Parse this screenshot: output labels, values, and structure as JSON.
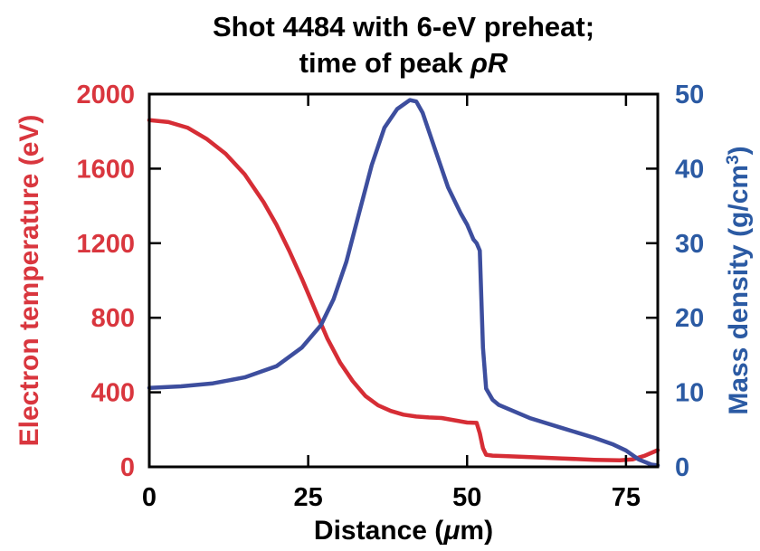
{
  "chart_data": {
    "type": "line",
    "title_line1": "Shot 4484 with 6-eV preheat;",
    "title_line2_prefix": "time of peak ",
    "title_line2_symbol": "ρR",
    "xlabel_prefix": "Distance (",
    "xlabel_unit_symbol": "μ",
    "xlabel_suffix": "m)",
    "ylabel_left": "Electron temperature (eV)",
    "ylabel_right_prefix": "Mass density (g/cm",
    "ylabel_right_sup": "3",
    "ylabel_right_suffix": ")",
    "xlim": [
      0,
      80
    ],
    "ylim_left": [
      0,
      2000
    ],
    "ylim_right": [
      0,
      50
    ],
    "xticks": [
      0,
      25,
      50,
      75
    ],
    "yticks_left": [
      0,
      400,
      800,
      1200,
      1600,
      2000
    ],
    "yticks_right": [
      0,
      10,
      20,
      30,
      40,
      50
    ],
    "colors": {
      "left": "#d62d35",
      "right": "#3d4e9e",
      "text_left": "#d9363e",
      "text_right": "#2b5aa3"
    },
    "series": [
      {
        "name": "Electron temperature (eV)",
        "axis": "left",
        "color": "#d62d35",
        "x": [
          0,
          3,
          6,
          9,
          12,
          15,
          18,
          20,
          22,
          24,
          26,
          28,
          30,
          32,
          34,
          36,
          38,
          40,
          42,
          44,
          46,
          48,
          50,
          51.5,
          52,
          52.5,
          53,
          54,
          56,
          60,
          65,
          70,
          74,
          76,
          78,
          80
        ],
        "y": [
          1860,
          1850,
          1820,
          1760,
          1680,
          1570,
          1420,
          1300,
          1160,
          1010,
          850,
          690,
          560,
          460,
          380,
          330,
          300,
          280,
          270,
          265,
          262,
          250,
          238,
          236,
          180,
          100,
          65,
          60,
          58,
          52,
          45,
          38,
          35,
          40,
          60,
          90
        ]
      },
      {
        "name": "Mass density (g/cm3)",
        "axis": "right",
        "color": "#3d4e9e",
        "x": [
          0,
          5,
          10,
          15,
          20,
          24,
          27,
          29,
          31,
          33,
          35,
          37,
          39,
          41,
          42,
          43,
          45,
          47,
          49,
          50,
          51,
          51.5,
          52,
          52.5,
          53,
          54,
          55,
          60,
          65,
          70,
          73,
          75,
          77,
          79,
          80
        ],
        "y": [
          10.6,
          10.8,
          11.2,
          12.0,
          13.5,
          16.0,
          19.0,
          22.5,
          27.5,
          34.0,
          40.5,
          45.5,
          48.0,
          49.2,
          49.0,
          47.5,
          42.5,
          37.5,
          34.0,
          32.5,
          30.5,
          30.0,
          29.0,
          16.0,
          10.5,
          9.0,
          8.3,
          6.5,
          5.2,
          3.9,
          3.0,
          2.2,
          1.0,
          0.3,
          0.2
        ]
      }
    ]
  }
}
